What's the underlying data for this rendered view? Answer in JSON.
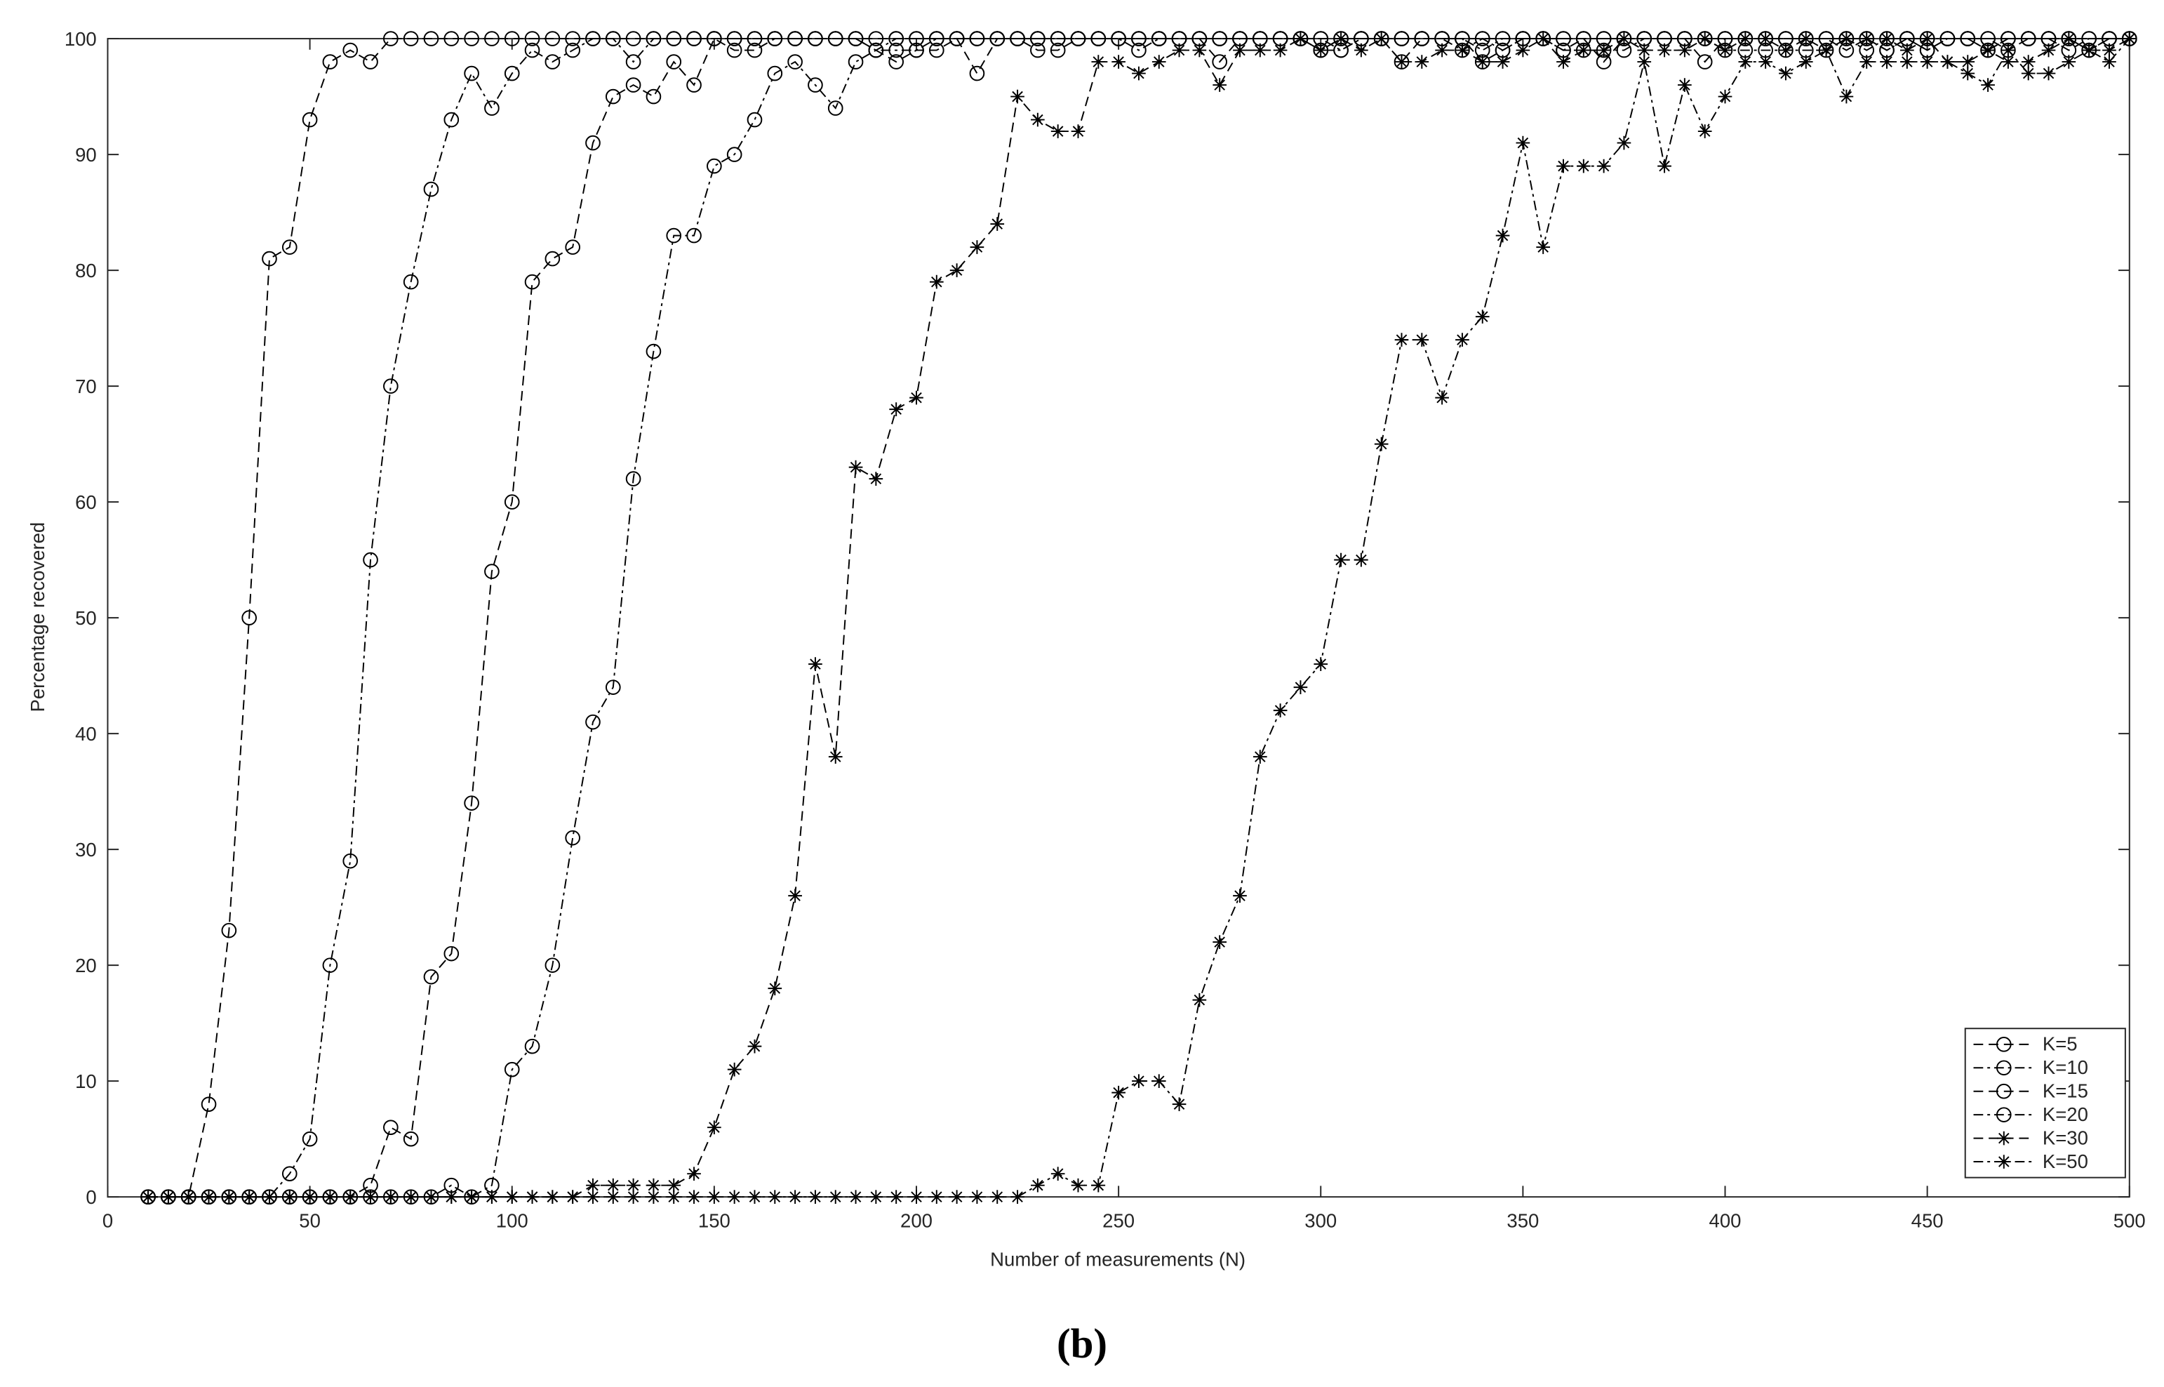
{
  "chart_data": {
    "type": "line",
    "xlabel": "Number of measurements (N)",
    "ylabel": "Percentage recovered",
    "caption": "(b)",
    "x": [
      10,
      15,
      20,
      25,
      30,
      35,
      40,
      45,
      50,
      55,
      60,
      65,
      70,
      75,
      80,
      85,
      90,
      95,
      100,
      105,
      110,
      115,
      120,
      125,
      130,
      135,
      140,
      145,
      150,
      155,
      160,
      165,
      170,
      175,
      180,
      185,
      190,
      195,
      200,
      205,
      210,
      215,
      220,
      225,
      230,
      235,
      240,
      245,
      250,
      255,
      260,
      265,
      270,
      275,
      280,
      285,
      290,
      295,
      300,
      305,
      310,
      315,
      320,
      325,
      330,
      335,
      340,
      345,
      350,
      355,
      360,
      365,
      370,
      375,
      380,
      385,
      390,
      395,
      400,
      405,
      410,
      415,
      420,
      425,
      430,
      435,
      440,
      445,
      450,
      455,
      460,
      465,
      470,
      475,
      480,
      485,
      490,
      495,
      500
    ],
    "xlim": [
      0,
      500
    ],
    "xticks": [
      0,
      50,
      100,
      150,
      200,
      250,
      300,
      350,
      400,
      450,
      500
    ],
    "ylim": [
      0,
      100
    ],
    "yticks": [
      0,
      10,
      20,
      30,
      40,
      50,
      60,
      70,
      80,
      90,
      100
    ],
    "legend": "lower right",
    "series": [
      {
        "name": "K=5",
        "color": "#000000",
        "marker": "o",
        "line_style": "--",
        "values": [
          0,
          0,
          0,
          8,
          23,
          50,
          81,
          82,
          93,
          98,
          99,
          98,
          100,
          100,
          100,
          100,
          100,
          100,
          100,
          100,
          100,
          100,
          100,
          100,
          100,
          100,
          100,
          100,
          100,
          100,
          100,
          100,
          100,
          100,
          100,
          100,
          100,
          100,
          100,
          100,
          100,
          100,
          100,
          100,
          100,
          100,
          100,
          100,
          100,
          100,
          100,
          100,
          100,
          100,
          100,
          100,
          100,
          100,
          100,
          100,
          100,
          100,
          100,
          100,
          100,
          100,
          100,
          100,
          100,
          100,
          100,
          100,
          100,
          100,
          100,
          100,
          100,
          100,
          100,
          100,
          100,
          100,
          100,
          100,
          100,
          100,
          100,
          100,
          100,
          100,
          100,
          100,
          100,
          100,
          100,
          100,
          100,
          100,
          100
        ]
      },
      {
        "name": "K=10",
        "color": "#000000",
        "marker": "o",
        "line_style": "-.",
        "values": [
          0,
          0,
          0,
          0,
          0,
          0,
          0,
          2,
          5,
          20,
          29,
          55,
          70,
          79,
          87,
          93,
          97,
          94,
          97,
          99,
          98,
          99,
          100,
          100,
          98,
          100,
          100,
          100,
          100,
          100,
          100,
          100,
          100,
          100,
          100,
          100,
          99,
          100,
          100,
          100,
          100,
          100,
          100,
          100,
          100,
          100,
          100,
          100,
          100,
          100,
          100,
          100,
          100,
          100,
          100,
          100,
          100,
          100,
          100,
          99,
          100,
          100,
          100,
          100,
          100,
          99,
          100,
          99,
          100,
          100,
          100,
          100,
          100,
          100,
          100,
          100,
          100,
          100,
          100,
          100,
          100,
          100,
          100,
          100,
          100,
          99,
          100,
          100,
          100,
          100,
          100,
          99,
          100,
          100,
          100,
          100,
          99,
          100,
          100
        ]
      },
      {
        "name": "K=15",
        "color": "#000000",
        "marker": "o",
        "line_style": "--",
        "values": [
          0,
          0,
          0,
          0,
          0,
          0,
          0,
          0,
          0,
          0,
          0,
          1,
          6,
          5,
          19,
          21,
          34,
          54,
          60,
          79,
          81,
          82,
          91,
          95,
          96,
          95,
          98,
          96,
          100,
          99,
          99,
          100,
          100,
          100,
          100,
          100,
          99,
          98,
          99,
          99,
          100,
          97,
          100,
          100,
          99,
          99,
          100,
          100,
          100,
          100,
          100,
          100,
          100,
          98,
          100,
          100,
          100,
          100,
          99,
          100,
          100,
          100,
          98,
          100,
          100,
          100,
          98,
          99,
          100,
          100,
          99,
          100,
          98,
          100,
          100,
          100,
          100,
          98,
          100,
          100,
          100,
          100,
          100,
          100,
          99,
          100,
          99,
          100,
          99,
          100,
          100,
          100,
          99,
          100,
          100,
          99,
          100,
          100,
          100
        ]
      },
      {
        "name": "K=20",
        "color": "#000000",
        "marker": "o",
        "line_style": "-.",
        "values": [
          0,
          0,
          0,
          0,
          0,
          0,
          0,
          0,
          0,
          0,
          0,
          0,
          0,
          0,
          0,
          1,
          0,
          1,
          11,
          13,
          20,
          31,
          41,
          44,
          62,
          73,
          83,
          83,
          89,
          90,
          93,
          97,
          98,
          96,
          94,
          98,
          99,
          99,
          99,
          100,
          100,
          100,
          100,
          100,
          100,
          100,
          100,
          100,
          100,
          99,
          100,
          100,
          100,
          100,
          100,
          100,
          100,
          100,
          99,
          99,
          100,
          100,
          100,
          100,
          100,
          100,
          99,
          100,
          100,
          100,
          99,
          99,
          99,
          99,
          100,
          100,
          100,
          100,
          99,
          99,
          99,
          99,
          99,
          99,
          100,
          100,
          99,
          100,
          99,
          100,
          100,
          99,
          100,
          100,
          100,
          100,
          99,
          100,
          100
        ]
      },
      {
        "name": "K=30",
        "color": "#000000",
        "marker": "*",
        "line_style": "--",
        "values": [
          0,
          0,
          0,
          0,
          0,
          0,
          0,
          0,
          0,
          0,
          0,
          0,
          0,
          0,
          0,
          0,
          0,
          0,
          0,
          0,
          0,
          0,
          1,
          1,
          1,
          1,
          1,
          2,
          6,
          11,
          13,
          18,
          26,
          46,
          38,
          63,
          62,
          68,
          69,
          79,
          80,
          82,
          84,
          95,
          93,
          92,
          92,
          98,
          98,
          97,
          98,
          99,
          99,
          96,
          99,
          99,
          99,
          100,
          99,
          100,
          99,
          100,
          98,
          98,
          99,
          99,
          98,
          98,
          99,
          100,
          98,
          99,
          99,
          100,
          99,
          99,
          99,
          100,
          99,
          100,
          100,
          99,
          100,
          99,
          100,
          100,
          100,
          99,
          100,
          98,
          98,
          99,
          98,
          98,
          99,
          100,
          99,
          99,
          100
        ]
      },
      {
        "name": "K=50",
        "color": "#000000",
        "marker": "*",
        "line_style": "-.",
        "values": [
          0,
          0,
          0,
          0,
          0,
          0,
          0,
          0,
          0,
          0,
          0,
          0,
          0,
          0,
          0,
          0,
          0,
          0,
          0,
          0,
          0,
          0,
          0,
          0,
          0,
          0,
          0,
          0,
          0,
          0,
          0,
          0,
          0,
          0,
          0,
          0,
          0,
          0,
          0,
          0,
          0,
          0,
          0,
          0,
          1,
          2,
          1,
          1,
          9,
          10,
          10,
          8,
          17,
          22,
          26,
          38,
          42,
          44,
          46,
          55,
          55,
          65,
          74,
          74,
          69,
          74,
          76,
          83,
          91,
          82,
          89,
          89,
          89,
          91,
          98,
          89,
          96,
          92,
          95,
          98,
          98,
          97,
          98,
          99,
          95,
          98,
          98,
          98,
          98,
          98,
          97,
          96,
          99,
          97,
          97,
          98,
          99,
          98,
          100
        ]
      }
    ]
  }
}
